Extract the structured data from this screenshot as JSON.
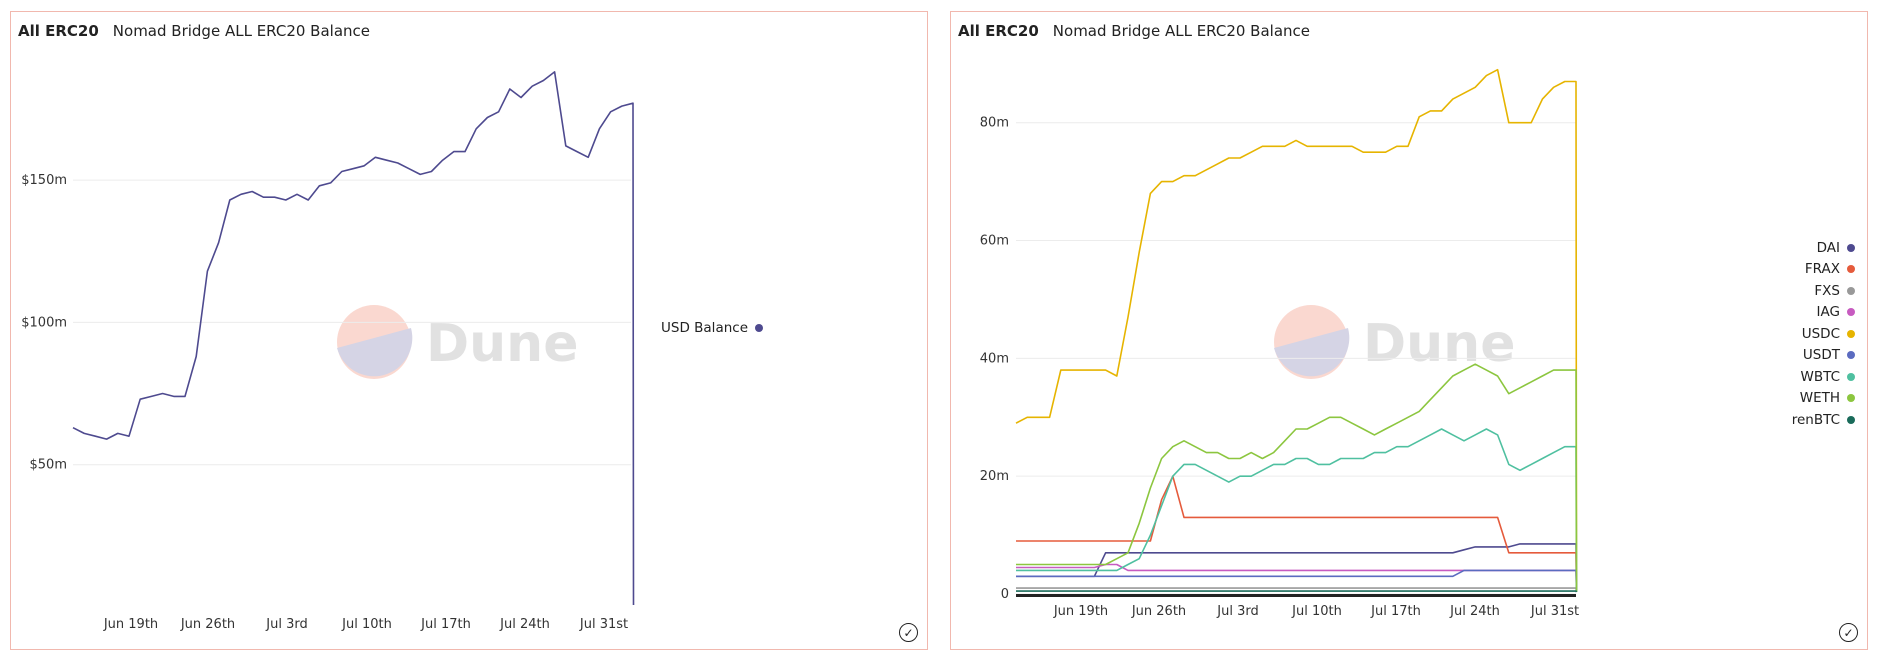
{
  "chart_data": [
    {
      "type": "line",
      "tab": "All ERC20",
      "title": "Nomad Bridge ALL ERC20 Balance",
      "xlabel": "",
      "ylabel": "",
      "x_ticks": [
        "Jun 19th",
        "Jun 26th",
        "Jul 3rd",
        "Jul 10th",
        "Jul 17th",
        "Jul 24th",
        "Jul 31st"
      ],
      "y_ticks": [
        "$50m",
        "$100m",
        "$150m"
      ],
      "ylim": [
        0,
        195
      ],
      "grid": true,
      "legend_position": "right",
      "watermark": "Dune",
      "x": [
        "Jun 12",
        "Jun 13",
        "Jun 14",
        "Jun 15",
        "Jun 16",
        "Jun 17",
        "Jun 18",
        "Jun 19",
        "Jun 20",
        "Jun 21",
        "Jun 22",
        "Jun 23",
        "Jun 24",
        "Jun 25",
        "Jun 26",
        "Jun 27",
        "Jun 28",
        "Jun 29",
        "Jun 30",
        "Jul 1",
        "Jul 2",
        "Jul 3",
        "Jul 4",
        "Jul 5",
        "Jul 6",
        "Jul 7",
        "Jul 8",
        "Jul 9",
        "Jul 10",
        "Jul 11",
        "Jul 12",
        "Jul 13",
        "Jul 14",
        "Jul 15",
        "Jul 16",
        "Jul 17",
        "Jul 18",
        "Jul 19",
        "Jul 20",
        "Jul 21",
        "Jul 22",
        "Jul 23",
        "Jul 24",
        "Jul 25",
        "Jul 26",
        "Jul 27",
        "Jul 28",
        "Jul 29",
        "Jul 30",
        "Jul 31",
        "Aug 1"
      ],
      "series": [
        {
          "name": "USD Balance",
          "color": "#4e4a8f",
          "values": [
            63,
            61,
            60,
            59,
            61,
            60,
            73,
            74,
            75,
            74,
            74,
            88,
            118,
            128,
            143,
            145,
            146,
            144,
            144,
            143,
            145,
            143,
            148,
            149,
            153,
            154,
            155,
            158,
            157,
            156,
            154,
            152,
            153,
            157,
            160,
            160,
            168,
            172,
            174,
            182,
            179,
            183,
            185,
            188,
            162,
            160,
            158,
            168,
            174,
            176,
            177
          ]
        }
      ]
    },
    {
      "type": "line",
      "tab": "All ERC20",
      "title": "Nomad Bridge ALL ERC20 Balance",
      "xlabel": "",
      "ylabel": "",
      "x_ticks": [
        "Jun 19th",
        "Jun 26th",
        "Jul 3rd",
        "Jul 10th",
        "Jul 17th",
        "Jul 24th",
        "Jul 31st"
      ],
      "y_ticks": [
        "0",
        "20m",
        "40m",
        "60m",
        "80m"
      ],
      "ylim": [
        0,
        92
      ],
      "grid": true,
      "legend_position": "right",
      "watermark": "Dune",
      "x": [
        "Jun 12",
        "Jun 13",
        "Jun 14",
        "Jun 15",
        "Jun 16",
        "Jun 17",
        "Jun 18",
        "Jun 19",
        "Jun 20",
        "Jun 21",
        "Jun 22",
        "Jun 23",
        "Jun 24",
        "Jun 25",
        "Jun 26",
        "Jun 27",
        "Jun 28",
        "Jun 29",
        "Jun 30",
        "Jul 1",
        "Jul 2",
        "Jul 3",
        "Jul 4",
        "Jul 5",
        "Jul 6",
        "Jul 7",
        "Jul 8",
        "Jul 9",
        "Jul 10",
        "Jul 11",
        "Jul 12",
        "Jul 13",
        "Jul 14",
        "Jul 15",
        "Jul 16",
        "Jul 17",
        "Jul 18",
        "Jul 19",
        "Jul 20",
        "Jul 21",
        "Jul 22",
        "Jul 23",
        "Jul 24",
        "Jul 25",
        "Jul 26",
        "Jul 27",
        "Jul 28",
        "Jul 29",
        "Jul 30",
        "Jul 31",
        "Aug 1"
      ],
      "series": [
        {
          "name": "DAI",
          "color": "#4e4a8f",
          "values": [
            3,
            3,
            3,
            3,
            3,
            3,
            3,
            3,
            7,
            7,
            7,
            7,
            7,
            7,
            7,
            7,
            7,
            7,
            7,
            7,
            7,
            7,
            7,
            7,
            7,
            7,
            7,
            7,
            7,
            7,
            7,
            7,
            7,
            7,
            7,
            7,
            7,
            7,
            7,
            7,
            7.5,
            8,
            8,
            8,
            8,
            8.5,
            8.5,
            8.5,
            8.5,
            8.5,
            8.5
          ]
        },
        {
          "name": "FRAX",
          "color": "#e55b3c",
          "values": [
            9,
            9,
            9,
            9,
            9,
            9,
            9,
            9,
            9,
            9,
            9,
            9,
            9,
            16,
            20,
            13,
            13,
            13,
            13,
            13,
            13,
            13,
            13,
            13,
            13,
            13,
            13,
            13,
            13,
            13,
            13,
            13,
            13,
            13,
            13,
            13,
            13,
            13,
            13,
            13,
            13,
            13,
            13,
            13,
            7,
            7,
            7,
            7,
            7,
            7,
            7
          ]
        },
        {
          "name": "FXS",
          "color": "#999999",
          "values": [
            1,
            1,
            1,
            1,
            1,
            1,
            1,
            1,
            1,
            1,
            1,
            1,
            1,
            1,
            1,
            1,
            1,
            1,
            1,
            1,
            1,
            1,
            1,
            1,
            1,
            1,
            1,
            1,
            1,
            1,
            1,
            1,
            1,
            1,
            1,
            1,
            1,
            1,
            1,
            1,
            1,
            1,
            1,
            1,
            1,
            1,
            1,
            1,
            1,
            1,
            1
          ]
        },
        {
          "name": "IAG",
          "color": "#c75bc0",
          "values": [
            4.5,
            4.5,
            4.5,
            4.5,
            4.5,
            4.5,
            4.5,
            4.5,
            5,
            5,
            4,
            4,
            4,
            4,
            4,
            4,
            4,
            4,
            4,
            4,
            4,
            4,
            4,
            4,
            4,
            4,
            4,
            4,
            4,
            4,
            4,
            4,
            4,
            4,
            4,
            4,
            4,
            4,
            4,
            4,
            4,
            4,
            4,
            4,
            4,
            4,
            4,
            4,
            4,
            4,
            4
          ]
        },
        {
          "name": "USDC",
          "color": "#e6b400",
          "values": [
            29,
            30,
            30,
            30,
            38,
            38,
            38,
            38,
            38,
            37,
            47,
            58,
            68,
            70,
            70,
            71,
            71,
            72,
            73,
            74,
            74,
            75,
            76,
            76,
            76,
            77,
            76,
            76,
            76,
            76,
            76,
            75,
            75,
            75,
            76,
            76,
            81,
            82,
            82,
            84,
            85,
            86,
            88,
            89,
            80,
            80,
            80,
            84,
            86,
            87,
            87
          ]
        },
        {
          "name": "USDT",
          "color": "#5b6bc0",
          "values": [
            3,
            3,
            3,
            3,
            3,
            3,
            3,
            3,
            3,
            3,
            3,
            3,
            3,
            3,
            3,
            3,
            3,
            3,
            3,
            3,
            3,
            3,
            3,
            3,
            3,
            3,
            3,
            3,
            3,
            3,
            3,
            3,
            3,
            3,
            3,
            3,
            3,
            3,
            3,
            3,
            4,
            4,
            4,
            4,
            4,
            4,
            4,
            4,
            4,
            4,
            4
          ]
        },
        {
          "name": "WBTC",
          "color": "#4fc0a0",
          "values": [
            4,
            4,
            4,
            4,
            4,
            4,
            4,
            4,
            4,
            4,
            5,
            6,
            10,
            15,
            20,
            22,
            22,
            21,
            20,
            19,
            20,
            20,
            21,
            22,
            22,
            23,
            23,
            22,
            22,
            23,
            23,
            23,
            24,
            24,
            25,
            25,
            26,
            27,
            28,
            27,
            26,
            27,
            28,
            27,
            22,
            21,
            22,
            23,
            24,
            25,
            25
          ]
        },
        {
          "name": "WETH",
          "color": "#8cc63f",
          "values": [
            5,
            5,
            5,
            5,
            5,
            5,
            5,
            5,
            5,
            6,
            7,
            12,
            18,
            23,
            25,
            26,
            25,
            24,
            24,
            23,
            23,
            24,
            23,
            24,
            26,
            28,
            28,
            29,
            30,
            30,
            29,
            28,
            27,
            28,
            29,
            30,
            31,
            33,
            35,
            37,
            38,
            39,
            38,
            37,
            34,
            35,
            36,
            37,
            38,
            38,
            38
          ]
        },
        {
          "name": "renBTC",
          "color": "#1a6b5a",
          "values": [
            0.5,
            0.5,
            0.5,
            0.5,
            0.5,
            0.5,
            0.5,
            0.5,
            0.5,
            0.5,
            0.5,
            0.5,
            0.5,
            0.5,
            0.5,
            0.5,
            0.5,
            0.5,
            0.5,
            0.5,
            0.5,
            0.5,
            0.5,
            0.5,
            0.5,
            0.5,
            0.5,
            0.5,
            0.5,
            0.5,
            0.5,
            0.5,
            0.5,
            0.5,
            0.5,
            0.5,
            0.5,
            0.5,
            0.5,
            0.5,
            0.5,
            0.5,
            0.5,
            0.5,
            0.5,
            0.5,
            0.5,
            0.5,
            0.5,
            0.5,
            0.5
          ]
        }
      ]
    }
  ]
}
